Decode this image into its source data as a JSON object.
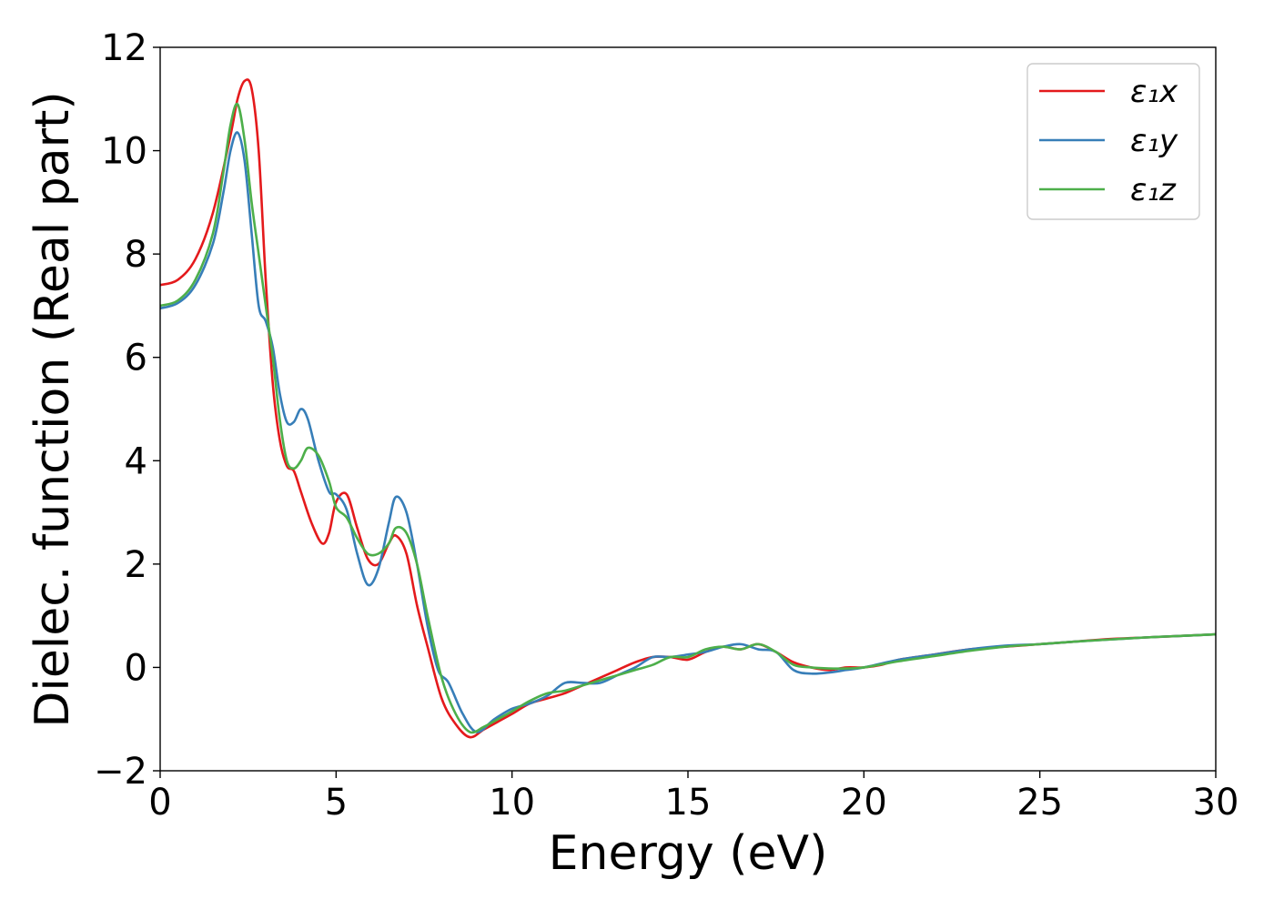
{
  "chart_data": {
    "type": "line",
    "title": "",
    "xlabel": "Energy (eV)",
    "ylabel": "Dielec. function (Real part)",
    "xlim": [
      0,
      30
    ],
    "ylim": [
      -2,
      12
    ],
    "xticks": [
      0,
      5,
      10,
      15,
      20,
      25,
      30
    ],
    "xtick_labels": [
      "0",
      "5",
      "10",
      "15",
      "20",
      "25",
      "30"
    ],
    "yticks": [
      -2,
      0,
      2,
      4,
      6,
      8,
      10,
      12
    ],
    "ytick_labels": [
      "−2",
      "0",
      "2",
      "4",
      "6",
      "8",
      "10",
      "12"
    ],
    "grid": false,
    "legend_position": "top-right",
    "series": [
      {
        "name": "ε₁x",
        "color": "#e41a1c",
        "x": [
          0,
          0.5,
          1.0,
          1.5,
          2.0,
          2.2,
          2.4,
          2.6,
          2.8,
          3.0,
          3.2,
          3.4,
          3.6,
          3.8,
          4.0,
          4.3,
          4.6,
          4.8,
          5.0,
          5.3,
          5.6,
          5.9,
          6.2,
          6.5,
          6.7,
          7.0,
          7.3,
          7.6,
          8.0,
          8.4,
          8.8,
          9.2,
          9.6,
          10.0,
          10.5,
          11.0,
          11.5,
          12.0,
          12.5,
          13.0,
          13.5,
          14.0,
          14.5,
          15.0,
          15.5,
          16.0,
          16.5,
          17.0,
          17.5,
          18.0,
          18.5,
          19.0,
          19.5,
          20.0,
          20.5,
          21.0,
          22.0,
          23.0,
          24.0,
          25.0,
          26.0,
          27.0,
          28.0,
          29.0,
          30.0
        ],
        "values": [
          7.4,
          7.5,
          7.9,
          8.8,
          10.3,
          11.0,
          11.35,
          11.2,
          10.0,
          7.5,
          5.5,
          4.4,
          3.9,
          3.8,
          3.4,
          2.8,
          2.4,
          2.6,
          3.2,
          3.35,
          2.7,
          2.1,
          2.0,
          2.4,
          2.55,
          2.2,
          1.2,
          0.4,
          -0.6,
          -1.1,
          -1.35,
          -1.2,
          -1.05,
          -0.9,
          -0.7,
          -0.6,
          -0.5,
          -0.35,
          -0.2,
          -0.05,
          0.1,
          0.2,
          0.2,
          0.15,
          0.3,
          0.4,
          0.35,
          0.45,
          0.3,
          0.1,
          0.0,
          -0.05,
          0.0,
          0.0,
          0.05,
          0.15,
          0.25,
          0.35,
          0.4,
          0.45,
          0.5,
          0.55,
          0.58,
          0.61,
          0.64
        ]
      },
      {
        "name": "ε₁y",
        "color": "#377eb8",
        "x": [
          0,
          0.5,
          1.0,
          1.5,
          1.8,
          2.0,
          2.2,
          2.4,
          2.6,
          2.8,
          3.0,
          3.2,
          3.4,
          3.6,
          3.8,
          4.0,
          4.2,
          4.5,
          4.8,
          5.0,
          5.3,
          5.6,
          5.9,
          6.2,
          6.5,
          6.7,
          7.0,
          7.3,
          7.6,
          7.9,
          8.2,
          8.6,
          9.0,
          9.5,
          10.0,
          10.5,
          11.0,
          11.5,
          12.0,
          12.5,
          13.0,
          13.5,
          14.0,
          14.5,
          15.0,
          15.5,
          16.0,
          16.5,
          17.0,
          17.5,
          18.0,
          18.5,
          19.0,
          19.5,
          20.0,
          21.0,
          22.0,
          23.0,
          24.0,
          25.0,
          26.0,
          27.0,
          28.0,
          29.0,
          30.0
        ],
        "values": [
          6.95,
          7.05,
          7.4,
          8.2,
          9.2,
          10.0,
          10.35,
          9.8,
          8.4,
          7.0,
          6.7,
          6.2,
          5.3,
          4.75,
          4.75,
          5.0,
          4.8,
          4.0,
          3.4,
          3.35,
          3.05,
          2.2,
          1.6,
          1.9,
          2.8,
          3.3,
          3.0,
          2.0,
          0.8,
          -0.05,
          -0.3,
          -0.9,
          -1.25,
          -1.0,
          -0.8,
          -0.7,
          -0.55,
          -0.3,
          -0.3,
          -0.3,
          -0.15,
          0.0,
          0.2,
          0.2,
          0.25,
          0.3,
          0.4,
          0.45,
          0.35,
          0.3,
          -0.05,
          -0.12,
          -0.1,
          -0.05,
          0.0,
          0.15,
          0.25,
          0.35,
          0.42,
          0.45,
          0.5,
          0.54,
          0.58,
          0.61,
          0.64
        ]
      },
      {
        "name": "ε₁z",
        "color": "#4daf4a",
        "x": [
          0,
          0.5,
          1.0,
          1.5,
          1.8,
          2.0,
          2.2,
          2.4,
          2.6,
          2.8,
          3.0,
          3.2,
          3.4,
          3.6,
          3.8,
          4.0,
          4.2,
          4.5,
          4.8,
          5.0,
          5.3,
          5.6,
          5.9,
          6.2,
          6.5,
          6.7,
          7.0,
          7.3,
          7.6,
          8.0,
          8.4,
          8.8,
          9.2,
          9.6,
          10.0,
          10.5,
          11.0,
          11.5,
          12.0,
          12.5,
          13.0,
          13.5,
          14.0,
          14.5,
          15.0,
          15.5,
          16.0,
          16.5,
          17.0,
          17.5,
          18.0,
          18.5,
          19.0,
          19.5,
          20.0,
          21.0,
          22.0,
          23.0,
          24.0,
          25.0,
          26.0,
          27.0,
          28.0,
          29.0,
          30.0
        ],
        "values": [
          7.0,
          7.1,
          7.5,
          8.4,
          9.6,
          10.5,
          10.9,
          10.2,
          9.0,
          8.0,
          7.0,
          6.0,
          4.8,
          4.0,
          3.85,
          4.0,
          4.25,
          4.1,
          3.6,
          3.1,
          2.9,
          2.5,
          2.2,
          2.2,
          2.4,
          2.7,
          2.6,
          2.0,
          1.0,
          -0.2,
          -0.9,
          -1.25,
          -1.15,
          -1.0,
          -0.85,
          -0.65,
          -0.5,
          -0.45,
          -0.35,
          -0.25,
          -0.15,
          -0.05,
          0.05,
          0.2,
          0.2,
          0.35,
          0.4,
          0.35,
          0.45,
          0.3,
          0.05,
          0.0,
          -0.02,
          -0.02,
          0.0,
          0.12,
          0.22,
          0.32,
          0.4,
          0.45,
          0.5,
          0.54,
          0.58,
          0.61,
          0.64
        ]
      }
    ]
  }
}
